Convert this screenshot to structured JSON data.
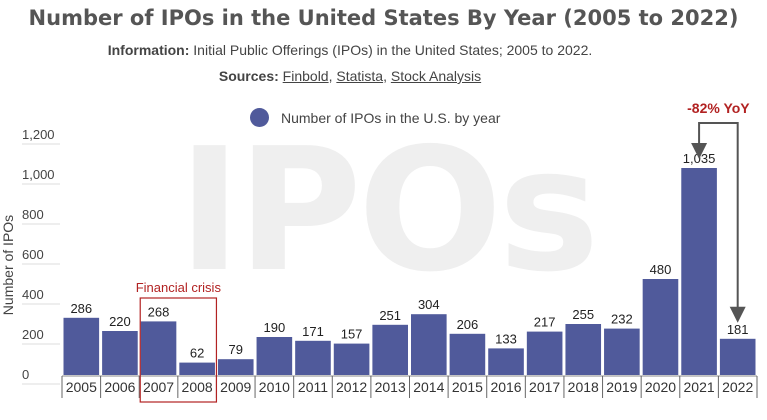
{
  "header": {
    "title": "Number of IPOs in the United States By Year (2005 to 2022)",
    "info_label": "Information:",
    "info_text": "Initial Public Offerings (IPOs) in the United States; 2005 to 2022.",
    "sources_label": "Sources:",
    "sources": [
      "Finbold",
      "Statista",
      "Stock Analysis"
    ],
    "source_sep": ", "
  },
  "watermark": "IPOs",
  "colors": {
    "bar": "#505a9b",
    "annotation": "#b22222",
    "arrow": "#555555"
  },
  "chart_data": {
    "type": "bar",
    "title": "Number of IPOs in the United States By Year (2005 to 2022)",
    "xlabel": "",
    "ylabel": "Number of IPOs",
    "ylim": [
      0,
      1200
    ],
    "yticks": [
      0,
      200,
      400,
      600,
      800,
      1000,
      1200
    ],
    "ytick_labels": [
      "0",
      "200",
      "400",
      "600",
      "800",
      "1,000",
      "1,200"
    ],
    "categories": [
      "2005",
      "2006",
      "2007",
      "2008",
      "2009",
      "2010",
      "2011",
      "2012",
      "2013",
      "2014",
      "2015",
      "2016",
      "2017",
      "2018",
      "2019",
      "2020",
      "2021",
      "2022"
    ],
    "series": [
      {
        "name": "Number of IPOs in the U.S. by year",
        "values": [
          286,
          220,
          268,
          62,
          79,
          190,
          171,
          157,
          251,
          304,
          206,
          133,
          217,
          255,
          232,
          480,
          1035,
          181
        ]
      }
    ],
    "value_labels": [
      "286",
      "220",
      "268",
      "62",
      "79",
      "190",
      "171",
      "157",
      "251",
      "304",
      "206",
      "133",
      "217",
      "255",
      "232",
      "480",
      "1,035",
      "181"
    ],
    "legend": {
      "label": "Number of IPOs in the U.S. by year",
      "position": "top"
    },
    "annotations": [
      {
        "text": "Financial crisis",
        "categories": [
          "2007",
          "2008"
        ]
      },
      {
        "text": "-82% YoY",
        "from": "2021",
        "to": "2022"
      }
    ]
  }
}
